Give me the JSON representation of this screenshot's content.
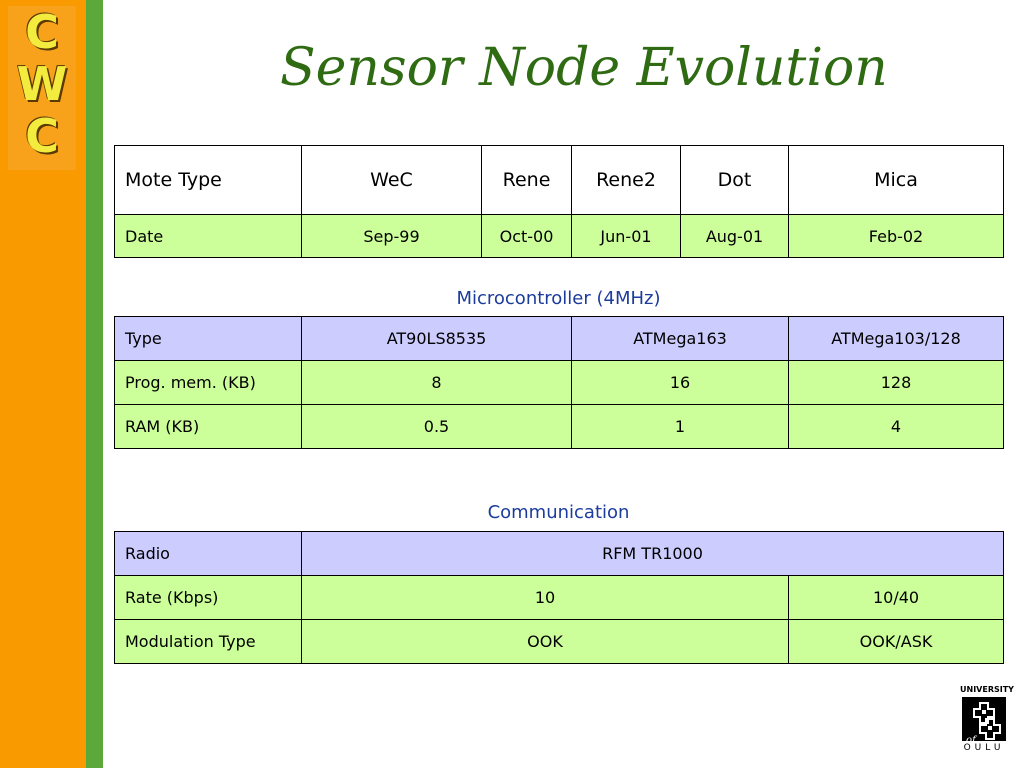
{
  "logo": {
    "letters": [
      "C",
      "W",
      "C"
    ]
  },
  "title": "Sensor Node Evolution",
  "mote_table": {
    "headers": [
      "Mote Type",
      "WeC",
      "Rene",
      "Rene2",
      "Dot",
      "Mica"
    ],
    "date_row": [
      "Date",
      "Sep-99",
      "Oct-00",
      "Jun-01",
      "Aug-01",
      "Feb-02"
    ]
  },
  "microcontroller": {
    "section_title": "Microcontroller (4MHz)",
    "rows": [
      [
        "Type",
        "AT90LS8535",
        "ATMega163",
        "ATMega103/128"
      ],
      [
        "Prog. mem. (KB)",
        "8",
        "16",
        "128"
      ],
      [
        "RAM (KB)",
        "0.5",
        "1",
        "4"
      ]
    ]
  },
  "communication": {
    "section_title": "Communication",
    "radio_row": [
      "Radio",
      "RFM TR1000"
    ],
    "rows": [
      [
        "Rate (Kbps)",
        "10",
        "10/40"
      ],
      [
        "Modulation Type",
        "OOK",
        "OOK/ASK"
      ]
    ]
  },
  "university_logo": {
    "top_text": "UNIVERSITY",
    "of_text": "of",
    "bottom_text": "OULU"
  },
  "colors": {
    "sidebar": "#f99a00",
    "stripe": "#5da83a",
    "title": "#2f6b13",
    "section": "#1c3c9c",
    "row_green": "#ccff99",
    "row_lavender": "#ccccff"
  }
}
